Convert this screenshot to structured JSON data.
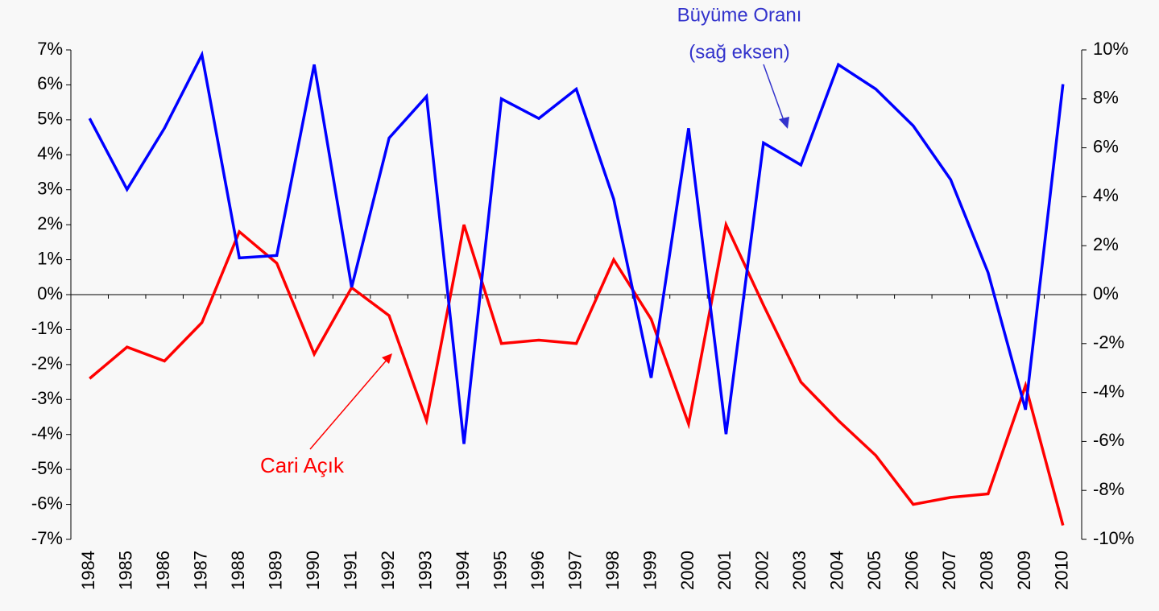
{
  "chart_data": {
    "type": "line",
    "categories": [
      "1984",
      "1985",
      "1986",
      "1987",
      "1988",
      "1989",
      "1990",
      "1991",
      "1992",
      "1993",
      "1994",
      "1995",
      "1996",
      "1997",
      "1998",
      "1999",
      "2000",
      "2001",
      "2002",
      "2003",
      "2004",
      "2005",
      "2006",
      "2007",
      "2008",
      "2009",
      "2010"
    ],
    "series": [
      {
        "name": "Cari Açık",
        "color": "#ff0000",
        "axis": "y",
        "values": [
          -2.4,
          -1.5,
          -1.9,
          -0.8,
          1.8,
          0.9,
          -1.7,
          0.2,
          -0.6,
          -3.6,
          2.0,
          -1.4,
          -1.3,
          -1.4,
          1.0,
          -0.7,
          -3.7,
          2.0,
          -0.3,
          -2.5,
          -3.6,
          -4.6,
          -6.0,
          -5.8,
          -5.7,
          -2.6,
          -6.6
        ]
      },
      {
        "name": "Büyüme Oranı",
        "color": "#0000ff",
        "axis": "y2",
        "values": [
          7.2,
          4.3,
          6.8,
          9.8,
          1.5,
          1.6,
          9.4,
          0.3,
          6.4,
          8.1,
          -6.1,
          8.0,
          7.2,
          8.4,
          3.9,
          -3.4,
          6.8,
          -5.7,
          6.2,
          5.3,
          9.4,
          8.4,
          6.9,
          4.7,
          0.9,
          -4.7,
          8.6
        ]
      }
    ],
    "annotations": [
      "(sağ eksen)"
    ],
    "ylim": [
      -7,
      7
    ],
    "yticks": [
      {
        "value": 7,
        "label": "7%"
      },
      {
        "value": 6,
        "label": "6%"
      },
      {
        "value": 5,
        "label": "5%"
      },
      {
        "value": 4,
        "label": "4%"
      },
      {
        "value": 3,
        "label": "3%"
      },
      {
        "value": 2,
        "label": "2%"
      },
      {
        "value": 1,
        "label": "1%"
      },
      {
        "value": 0,
        "label": "0%"
      },
      {
        "value": -1,
        "label": "-1%"
      },
      {
        "value": -2,
        "label": "-2%"
      },
      {
        "value": -3,
        "label": "-3%"
      },
      {
        "value": -4,
        "label": "-4%"
      },
      {
        "value": -5,
        "label": "-5%"
      },
      {
        "value": -6,
        "label": "-6%"
      },
      {
        "value": -7,
        "label": "-7%"
      }
    ],
    "y2lim": [
      -10,
      10
    ],
    "y2ticks": [
      {
        "value": 10,
        "label": "10%"
      },
      {
        "value": 8,
        "label": "8%"
      },
      {
        "value": 6,
        "label": "6%"
      },
      {
        "value": 4,
        "label": "4%"
      },
      {
        "value": 2,
        "label": "2%"
      },
      {
        "value": 0,
        "label": "0%"
      },
      {
        "value": -2,
        "label": "-2%"
      },
      {
        "value": -4,
        "label": "-4%"
      },
      {
        "value": -6,
        "label": "-6%"
      },
      {
        "value": -8,
        "label": "-8%"
      },
      {
        "value": -10,
        "label": "-10%"
      }
    ]
  }
}
